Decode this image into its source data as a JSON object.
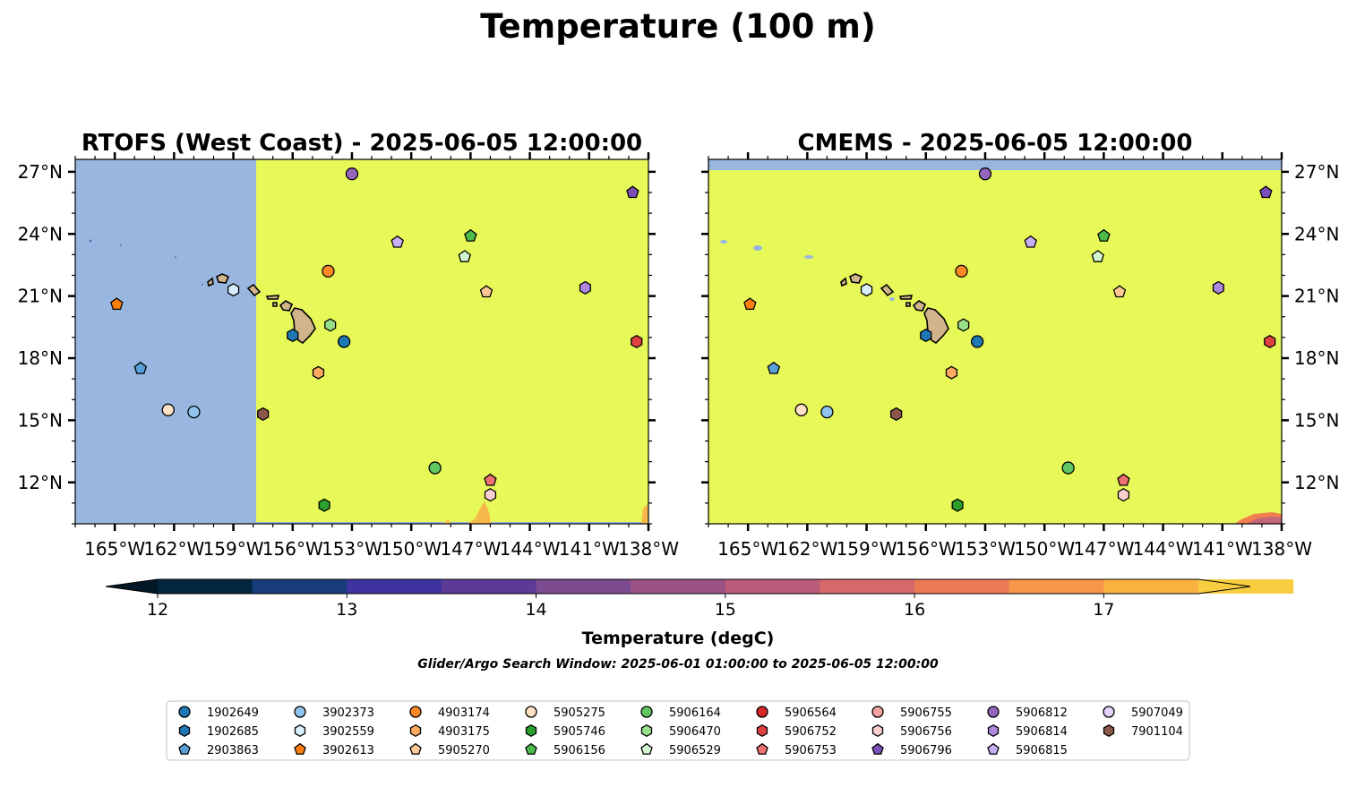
{
  "figure": {
    "title": "Temperature (100 m)",
    "search_window": "Glider/Argo Search Window: 2025-06-01 01:00:00 to 2025-06-05 12:00:00"
  },
  "colors": {
    "land": "#d2b48c",
    "masked_sea": "#98b6e0",
    "warm_field": "#e7f859"
  },
  "chart_data": [
    {
      "type": "heatmap",
      "title": "RTOFS (West Coast) - 2025-06-05 12:00:00",
      "x_ticks": [
        "165°W",
        "162°W",
        "159°W",
        "156°W",
        "153°W",
        "150°W",
        "147°W",
        "144°W",
        "141°W",
        "138°W"
      ],
      "y_ticks": [
        "12°N",
        "15°N",
        "18°N",
        "21°N",
        "24°N",
        "27°N"
      ],
      "xlim": [
        -167,
        -138
      ],
      "ylim": [
        10,
        27.6
      ],
      "grid": false,
      "field": "model coverage only east of ~157.1°W; values mostly >17.5 degC (yellow); land = tan"
    },
    {
      "type": "heatmap",
      "title": "CMEMS - 2025-06-05 12:00:00",
      "x_ticks": [
        "165°W",
        "162°W",
        "159°W",
        "156°W",
        "153°W",
        "150°W",
        "147°W",
        "144°W",
        "141°W",
        "138°W"
      ],
      "y_ticks": [
        "12°N",
        "15°N",
        "18°N",
        "21°N",
        "24°N",
        "27°N"
      ],
      "xlim": [
        -167,
        -138
      ],
      "ylim": [
        10,
        27.6
      ],
      "grid": false,
      "field": "values mostly >17.5 degC (yellow); no data north of ~27.1°N; land = tan"
    }
  ],
  "colorbar": {
    "label": "Temperature (degC)",
    "ticks": [
      "12",
      "13",
      "14",
      "15",
      "16",
      "17"
    ],
    "range": [
      12,
      17.5
    ],
    "step": 0.5,
    "extend": "both",
    "colors": [
      "#03263f",
      "#183b7c",
      "#3f33a1",
      "#5c3b97",
      "#7c4a8e",
      "#9b5386",
      "#ba5c7a",
      "#d5686a",
      "#ec7b55",
      "#f8964a",
      "#fab240",
      "#f8cd40"
    ],
    "under_color": "#021826",
    "over_color": "#e7f859"
  },
  "legend": {
    "placement": "bottom",
    "columns": 9,
    "entries": [
      {
        "id": "1902649",
        "color": "#1f77b4",
        "marker": "circle"
      },
      {
        "id": "1902685",
        "color": "#1f77b4",
        "marker": "hexagon"
      },
      {
        "id": "2903863",
        "color": "#5aa0d8",
        "marker": "pentagon"
      },
      {
        "id": "3902373",
        "color": "#8ec4ee",
        "marker": "circle"
      },
      {
        "id": "3902559",
        "color": "#daeefd",
        "marker": "hexagon"
      },
      {
        "id": "3902613",
        "color": "#ff7f0e",
        "marker": "pentagon"
      },
      {
        "id": "4903174",
        "color": "#ff8a24",
        "marker": "circle"
      },
      {
        "id": "4903175",
        "color": "#ffaa60",
        "marker": "hexagon"
      },
      {
        "id": "5905270",
        "color": "#ffc896",
        "marker": "pentagon"
      },
      {
        "id": "5905275",
        "color": "#ffe2c6",
        "marker": "circle"
      },
      {
        "id": "5905746",
        "color": "#2ca02c",
        "marker": "hexagon"
      },
      {
        "id": "5906156",
        "color": "#4cbb4c",
        "marker": "pentagon"
      },
      {
        "id": "5906164",
        "color": "#62c662",
        "marker": "circle"
      },
      {
        "id": "5906470",
        "color": "#98df8a",
        "marker": "hexagon"
      },
      {
        "id": "5906529",
        "color": "#d3f7d0",
        "marker": "pentagon"
      },
      {
        "id": "5906564",
        "color": "#d62728",
        "marker": "circle"
      },
      {
        "id": "5906752",
        "color": "#e04040",
        "marker": "hexagon"
      },
      {
        "id": "5906753",
        "color": "#ee7070",
        "marker": "pentagon"
      },
      {
        "id": "5906755",
        "color": "#f4a3a3",
        "marker": "circle"
      },
      {
        "id": "5906756",
        "color": "#fad0d0",
        "marker": "hexagon"
      },
      {
        "id": "5906796",
        "color": "#7b4fb8",
        "marker": "pentagon"
      },
      {
        "id": "5906812",
        "color": "#9467bd",
        "marker": "circle"
      },
      {
        "id": "5906814",
        "color": "#ad88dc",
        "marker": "hexagon"
      },
      {
        "id": "5906815",
        "color": "#c8aef4",
        "marker": "pentagon"
      },
      {
        "id": "5907049",
        "color": "#e2d3fb",
        "marker": "circle"
      },
      {
        "id": "7901104",
        "color": "#8c564b",
        "marker": "hexagon"
      }
    ]
  },
  "floats": [
    {
      "id": "1902649",
      "lon": -153.4,
      "lat": 18.8
    },
    {
      "id": "1902685",
      "lon": -156.0,
      "lat": 19.1
    },
    {
      "id": "2903863",
      "lon": -163.7,
      "lat": 17.5
    },
    {
      "id": "3902373",
      "lon": -161.0,
      "lat": 15.4
    },
    {
      "id": "3902559",
      "lon": -159.0,
      "lat": 21.3
    },
    {
      "id": "3902613",
      "lon": -164.9,
      "lat": 20.6
    },
    {
      "id": "4903174",
      "lon": -154.2,
      "lat": 22.2
    },
    {
      "id": "4903175",
      "lon": -154.7,
      "lat": 17.3
    },
    {
      "id": "5905270",
      "lon": -146.2,
      "lat": 21.2
    },
    {
      "id": "5905275",
      "lon": -162.3,
      "lat": 15.5
    },
    {
      "id": "5905746",
      "lon": -154.4,
      "lat": 10.9
    },
    {
      "id": "5906156",
      "lon": -147.0,
      "lat": 23.9
    },
    {
      "id": "5906164",
      "lon": -148.8,
      "lat": 12.7
    },
    {
      "id": "5906470",
      "lon": -154.1,
      "lat": 19.6
    },
    {
      "id": "5906529",
      "lon": -147.3,
      "lat": 22.9
    },
    {
      "id": "5906752",
      "lon": -138.6,
      "lat": 18.8
    },
    {
      "id": "5906753",
      "lon": -146.0,
      "lat": 12.1
    },
    {
      "id": "5906756",
      "lon": -146.0,
      "lat": 11.4
    },
    {
      "id": "5906796",
      "lon": -138.8,
      "lat": 26.0
    },
    {
      "id": "5906812",
      "lon": -153.0,
      "lat": 26.9
    },
    {
      "id": "5906814",
      "lon": -141.2,
      "lat": 21.4
    },
    {
      "id": "5906815",
      "lon": -150.7,
      "lat": 23.6
    },
    {
      "id": "7901104",
      "lon": -157.5,
      "lat": 15.3
    }
  ]
}
